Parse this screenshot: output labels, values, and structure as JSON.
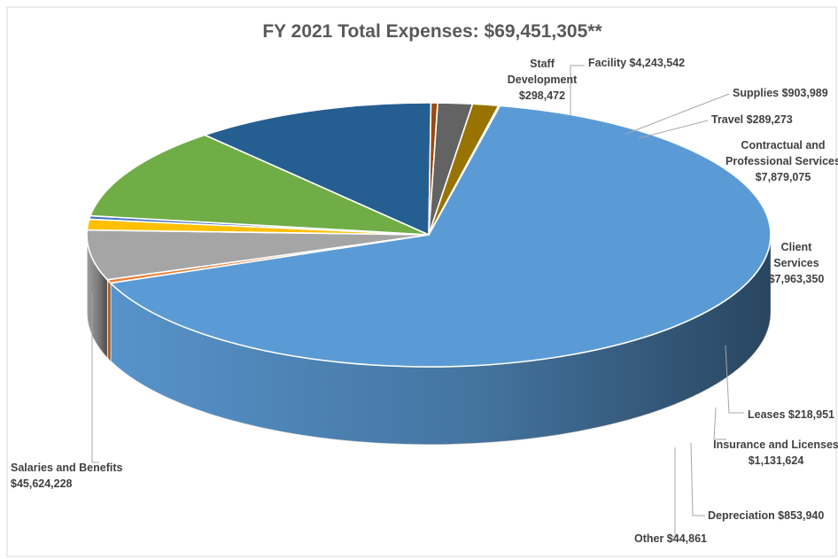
{
  "chart_data": {
    "type": "pie",
    "style": "3d-exploded-none",
    "title": "FY 2021 Total Expenses: $69,451,305**",
    "series": [
      {
        "name": "Salaries and Benefits",
        "value": 45624228,
        "value_label": "$45,624,228",
        "color": "#5b9bd5"
      },
      {
        "name": "Staff Development",
        "value": 298472,
        "value_label": "$298,472",
        "color": "#ed7d31"
      },
      {
        "name": "Facility",
        "value": 4243542,
        "value_label": "$4,243,542",
        "color": "#a5a5a5"
      },
      {
        "name": "Supplies",
        "value": 903989,
        "value_label": "$903,989",
        "color": "#ffc000"
      },
      {
        "name": "Travel",
        "value": 289273,
        "value_label": "$289,273",
        "color": "#4472c4"
      },
      {
        "name": "Contractual and Professional Services",
        "value": 7879075,
        "value_label": "$7,879,075",
        "color": "#70ad47"
      },
      {
        "name": "Client Services",
        "value": 7963350,
        "value_label": "$7,963,350",
        "color": "#255e91"
      },
      {
        "name": "Leases",
        "value": 218951,
        "value_label": "$218,951",
        "color": "#9e480e"
      },
      {
        "name": "Insurance and Licenses",
        "value": 1131624,
        "value_label": "$1,131,624",
        "color": "#636363"
      },
      {
        "name": "Depreciation",
        "value": 853940,
        "value_label": "$853,940",
        "color": "#997300"
      },
      {
        "name": "Other",
        "value": 44861,
        "value_label": "$44,861",
        "color": "#264478"
      }
    ]
  },
  "labels": {
    "salaries": [
      "Salaries and Benefits",
      "$45,624,228"
    ],
    "staff": [
      "Staff",
      "Development",
      "$298,472"
    ],
    "facility": [
      "Facility $4,243,542"
    ],
    "supplies": [
      "Supplies $903,989"
    ],
    "travel": [
      "Travel $289,273"
    ],
    "contractual": [
      "Contractual and",
      "Professional Services",
      "$7,879,075"
    ],
    "client": [
      "Client",
      "Services",
      "$7,963,350"
    ],
    "leases": [
      "Leases $218,951"
    ],
    "insurance": [
      "Insurance and Licenses",
      "$1,131,624"
    ],
    "depreciation": [
      "Depreciation $853,940"
    ],
    "other": [
      "Other $44,861"
    ]
  }
}
